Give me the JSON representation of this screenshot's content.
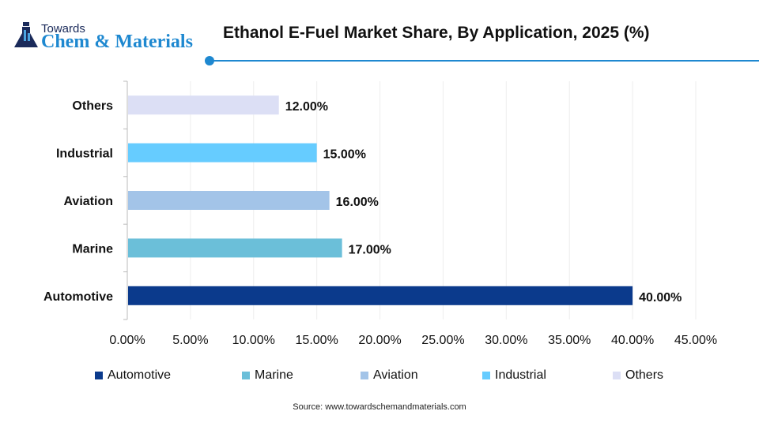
{
  "logo": {
    "line1": "Towards",
    "line2": "Chem & Materials"
  },
  "title": "Ethanol E-Fuel Market Share, By Application, 2025 (%)",
  "source": "Source: www.towardschemandmaterials.com",
  "chart_data": {
    "type": "bar",
    "orientation": "horizontal",
    "title": "Ethanol E-Fuel Market Share, By Application, 2025 (%)",
    "categories": [
      "Automotive",
      "Marine",
      "Aviation",
      "Industrial",
      "Others"
    ],
    "values": [
      40,
      17,
      16,
      15,
      12
    ],
    "data_labels": [
      "40.00%",
      "17.00%",
      "16.00%",
      "15.00%",
      "12.00%"
    ],
    "colors": [
      "#0b3a8c",
      "#6bbfd9",
      "#a3c4e8",
      "#66ccff",
      "#dcdff5"
    ],
    "xlim": [
      0,
      45
    ],
    "xticks": [
      "0.00%",
      "5.00%",
      "10.00%",
      "15.00%",
      "20.00%",
      "25.00%",
      "30.00%",
      "35.00%",
      "40.00%",
      "45.00%"
    ],
    "grid": true,
    "legend": "bottom"
  }
}
